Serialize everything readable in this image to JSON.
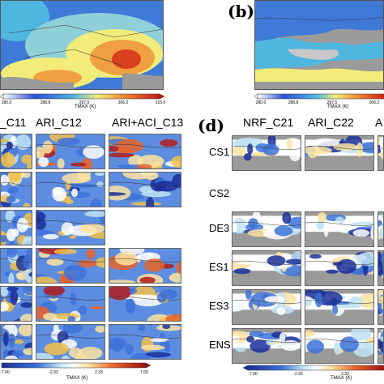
{
  "panels": {
    "a_partial": {
      "colorbar": {
        "label": "TMAX (K)",
        "ticks": [
          "280.0",
          "288.8",
          "297.5",
          "306.2",
          "315.0"
        ]
      }
    },
    "b": {
      "letter": "(b)",
      "colorbar": {
        "label": "TMAX (K)",
        "ticks": [
          "280.0",
          "288.8",
          "297.5",
          "306.2"
        ]
      }
    },
    "c_partial": {
      "column_labels": [
        "_C11",
        "ARI_C12",
        "ARI+ACI_C13"
      ],
      "colorbar": {
        "label": "TMAX (K)",
        "ticks": [
          "-7.00",
          "-2.33",
          "2.33",
          "7.00"
        ]
      }
    },
    "d": {
      "letter": "(d)",
      "column_labels": [
        "NRF_C21",
        "ARI_C22",
        "A"
      ],
      "row_labels": [
        "CS1",
        "CS2",
        "DE3",
        "ES1",
        "ES3",
        "ENS"
      ],
      "colorbar": {
        "label": "TMAX (K)",
        "ticks": [
          "-7.00",
          "-2.33",
          "2.33"
        ]
      }
    }
  },
  "colors": {
    "abs_scale": [
      "#ffffff",
      "#2e4fd6",
      "#4fb6e0",
      "#f2ec7a",
      "#f07a2a",
      "#c21a1a"
    ],
    "diff_scale": [
      "#1a2f9a",
      "#3d72d8",
      "#bfe3f5",
      "#ffffff",
      "#fbe3a0",
      "#e8642a",
      "#9a1010"
    ],
    "land_gray": "#9a9a9a"
  }
}
